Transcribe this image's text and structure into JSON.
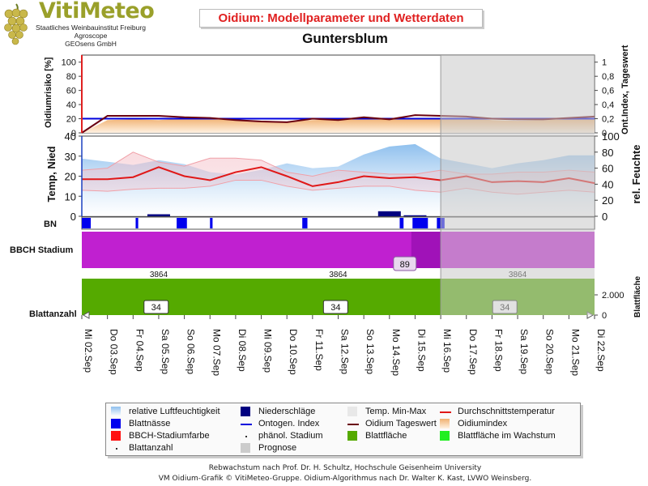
{
  "logo": {
    "title": "VitiMeteo",
    "line1": "Staatliches Weinbauinstitut Freiburg",
    "line2": "Agroscope",
    "line3": "GEOsens GmbH"
  },
  "header": {
    "title": "Oidium: Modellparameter und Wetterdaten",
    "station": "Guntersblum"
  },
  "colors": {
    "accent_red": "#e02020",
    "prognose_gray": "#c8c8c8",
    "bbch_magenta": "#c020d0",
    "leaf_green": "#55aa00",
    "humidity_blue": "#9cc8f0",
    "rain_navy": "#000080",
    "wetness_blue": "#0000ee",
    "temp_line": "#e01818",
    "risk_dark": "#6a0010"
  },
  "chart_data": {
    "type": "line",
    "x": [
      "Mi 02.Sep",
      "Do 03.Sep",
      "Fr 04.Sep",
      "Sa 05.Sep",
      "So 06.Sep",
      "Mo 07.Sep",
      "Di 08.Sep",
      "Mi 09.Sep",
      "Do 10.Sep",
      "Fr 11.Sep",
      "Sa 12.Sep",
      "So 13.Sep",
      "Mo 14.Sep",
      "Di 15.Sep",
      "Mi 16.Sep",
      "Do 17.Sep",
      "Fr 18.Sep",
      "Sa 19.Sep",
      "So 20.Sep",
      "Mo 21.Sep",
      "Di 22.Sep"
    ],
    "prognose_from_index": 14,
    "panels": {
      "risk": {
        "ylabel_left": "Oidiumrisiko [%]",
        "ylabel_right": "Ont.Index, Tageswert",
        "left_ticks": [
          "0",
          "20",
          "40",
          "60",
          "80",
          "100"
        ],
        "right_ticks": [
          "0",
          "0,2",
          "0,4",
          "0,6",
          "0,8",
          "1"
        ],
        "ylim_left": [
          0,
          110
        ],
        "ylim_right": [
          0,
          1.1
        ],
        "oidiumindex": [
          0,
          18,
          19,
          18,
          20,
          19,
          18,
          17,
          16,
          18,
          19,
          20,
          20,
          21,
          21,
          21,
          18,
          17,
          18,
          19,
          21
        ],
        "oidium_tageswert": [
          0,
          24,
          24,
          24,
          22,
          21,
          18,
          16,
          15,
          20,
          18,
          22,
          19,
          25,
          24,
          23,
          20,
          19,
          19,
          21,
          23
        ],
        "ontogen_index": 0.2
      },
      "weather": {
        "ylabel_left": "Temp, Nied",
        "ylabel_right": "rel. Feuchte",
        "left_ticks": [
          "0",
          "10",
          "20",
          "30",
          "40"
        ],
        "right_ticks": [
          "0",
          "20",
          "40",
          "60",
          "80",
          "100"
        ],
        "ylim_left": [
          0,
          40
        ],
        "ylim_right": [
          0,
          100
        ],
        "rel_humidity": [
          72,
          68,
          64,
          70,
          65,
          55,
          52,
          58,
          66,
          60,
          62,
          77,
          87,
          90,
          72,
          66,
          60,
          66,
          70,
          76,
          76
        ],
        "temp_avg": [
          18.5,
          18.5,
          19.5,
          24.5,
          20,
          18,
          22,
          24.5,
          20,
          15,
          17,
          20,
          19,
          19.5,
          18,
          20,
          17,
          17.5,
          17,
          19,
          16.5
        ],
        "temp_max": [
          23,
          24,
          32,
          27,
          25,
          29,
          29,
          28,
          22,
          20,
          23,
          22,
          21,
          21,
          23,
          21,
          21,
          22,
          22,
          23,
          22
        ],
        "temp_min": [
          13,
          12.5,
          13.5,
          14,
          14,
          15,
          18,
          18,
          15,
          13,
          14,
          15,
          15,
          13,
          12,
          14,
          12,
          11,
          12,
          13,
          12
        ],
        "precipitation": [
          0,
          0,
          0,
          1,
          0,
          0,
          0,
          0,
          0,
          0,
          0,
          0,
          2.5,
          0.5,
          0,
          0,
          0,
          0,
          0,
          0,
          0
        ]
      },
      "bn": {
        "label": "BN",
        "wet_spans": [
          [
            0.0,
            0.35
          ],
          [
            2.1,
            2.2
          ],
          [
            3.7,
            4.1
          ],
          [
            5.0,
            5.1
          ],
          [
            8.6,
            8.8
          ],
          [
            12.4,
            12.55
          ],
          [
            12.9,
            13.5
          ],
          [
            13.85,
            14.15
          ]
        ]
      },
      "bbch": {
        "label": "BBCH Stadium",
        "badge_value": "89",
        "stage_label": "3864",
        "badge_index": 12.6
      },
      "leaf": {
        "label": "Blattanzahl",
        "ylabel_right": "Blattfläche",
        "right_ticks": [
          "0",
          "2.000"
        ],
        "ylim_right": [
          0,
          3600
        ],
        "blattflaeche": 3600,
        "badges": [
          {
            "index": 2.9,
            "value": "34"
          },
          {
            "index": 9.9,
            "value": "34"
          },
          {
            "index": 16.5,
            "value": "34"
          }
        ]
      }
    }
  },
  "legend": [
    {
      "label": "relative Luftfeuchtigkeit",
      "symbol": "gradient-blue"
    },
    {
      "label": "Niederschläge",
      "symbol": "box-navy"
    },
    {
      "label": "Temp. Min-Max",
      "symbol": "box-lightgray"
    },
    {
      "label": "Durchschnittstemperatur",
      "symbol": "line-red"
    },
    {
      "label": "Blattnässe",
      "symbol": "box-blue"
    },
    {
      "label": "Ontogen. Index",
      "symbol": "line-blue"
    },
    {
      "label": "Oidium Tageswert",
      "symbol": "line-darkred"
    },
    {
      "label": "Oidiumindex",
      "symbol": "gradient-orange"
    },
    {
      "label": "BBCH-Stadiumfarbe",
      "symbol": "box-red"
    },
    {
      "label": "phänol. Stadium",
      "symbol": "dot"
    },
    {
      "label": "Blattfläche",
      "symbol": "box-green"
    },
    {
      "label": "Blattfläche im Wachstum",
      "symbol": "box-lightgreen"
    },
    {
      "label": "Blattanzahl",
      "symbol": "dot"
    },
    {
      "label": "Prognose",
      "symbol": "box-gray"
    }
  ],
  "footer": {
    "line1": "Rebwachstum nach Prof. Dr. H. Schultz, Hochschule Geisenheim University",
    "line2": "VM Oidium-Grafik © VitiMeteo-Gruppe. Oidium-Algorithmus nach Dr. Walter K. Kast, LVWO Weinsberg."
  }
}
